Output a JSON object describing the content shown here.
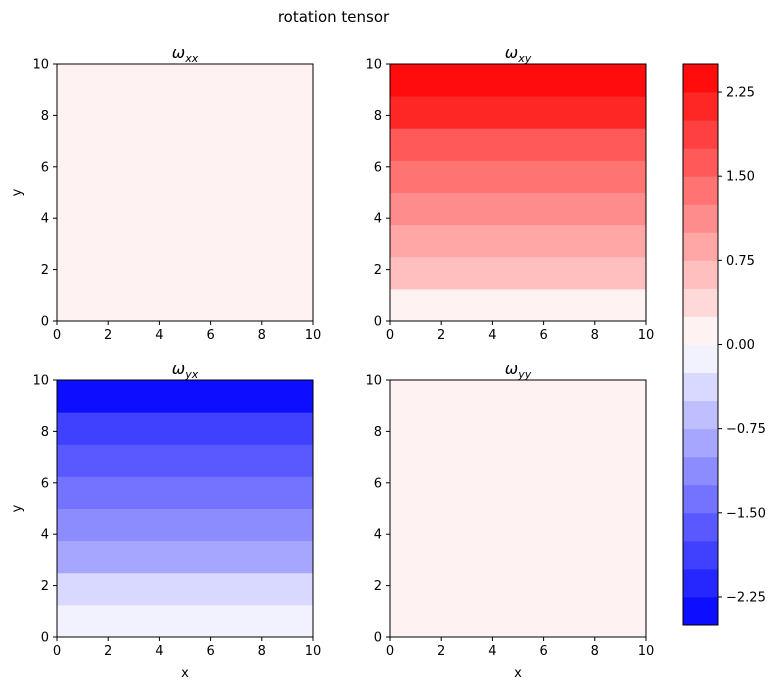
{
  "figure": {
    "suptitle": "rotation tensor"
  },
  "chart_data": [
    {
      "type": "heatmap",
      "title": "ω_xx",
      "title_main": "ω",
      "title_sub": "xx",
      "xlabel": "",
      "ylabel": "y",
      "xlim": [
        0,
        10
      ],
      "ylim": [
        0,
        10
      ],
      "xticks": [
        "0",
        "2",
        "4",
        "6",
        "8",
        "10"
      ],
      "yticks": [
        "0",
        "2",
        "4",
        "6",
        "8",
        "10"
      ],
      "bands": [
        {
          "y0": 0,
          "y1": 10,
          "value": 0.0
        }
      ]
    },
    {
      "type": "heatmap",
      "title": "ω_xy",
      "title_main": "ω",
      "title_sub": "xy",
      "xlabel": "",
      "ylabel": "",
      "xlim": [
        0,
        10
      ],
      "ylim": [
        0,
        10
      ],
      "xticks": [
        "0",
        "2",
        "4",
        "6",
        "8",
        "10"
      ],
      "yticks": [
        "0",
        "2",
        "4",
        "6",
        "8",
        "10"
      ],
      "bands": [
        {
          "y0": 0,
          "y1": 1.25,
          "value": 0.19
        },
        {
          "y0": 1.25,
          "y1": 2.5,
          "value": 0.5
        },
        {
          "y0": 2.5,
          "y1": 3.75,
          "value": 0.8
        },
        {
          "y0": 3.75,
          "y1": 5.0,
          "value": 1.1
        },
        {
          "y0": 5.0,
          "y1": 6.25,
          "value": 1.4
        },
        {
          "y0": 6.25,
          "y1": 7.5,
          "value": 1.7
        },
        {
          "y0": 7.5,
          "y1": 8.75,
          "value": 2.0
        },
        {
          "y0": 8.75,
          "y1": 10,
          "value": 2.3
        }
      ]
    },
    {
      "type": "heatmap",
      "title": "ω_yx",
      "title_main": "ω",
      "title_sub": "yx",
      "xlabel": "x",
      "ylabel": "y",
      "xlim": [
        0,
        10
      ],
      "ylim": [
        0,
        10
      ],
      "xticks": [
        "0",
        "2",
        "4",
        "6",
        "8",
        "10"
      ],
      "yticks": [
        "0",
        "2",
        "4",
        "6",
        "8",
        "10"
      ],
      "bands": [
        {
          "y0": 0,
          "y1": 1.25,
          "value": -0.19
        },
        {
          "y0": 1.25,
          "y1": 2.5,
          "value": -0.5
        },
        {
          "y0": 2.5,
          "y1": 3.75,
          "value": -0.8
        },
        {
          "y0": 3.75,
          "y1": 5.0,
          "value": -1.1
        },
        {
          "y0": 5.0,
          "y1": 6.25,
          "value": -1.4
        },
        {
          "y0": 6.25,
          "y1": 7.5,
          "value": -1.7
        },
        {
          "y0": 7.5,
          "y1": 8.75,
          "value": -2.0
        },
        {
          "y0": 8.75,
          "y1": 10,
          "value": -2.3
        }
      ]
    },
    {
      "type": "heatmap",
      "title": "ω_yy",
      "title_main": "ω",
      "title_sub": "yy",
      "xlabel": "x",
      "ylabel": "",
      "xlim": [
        0,
        10
      ],
      "ylim": [
        0,
        10
      ],
      "xticks": [
        "0",
        "2",
        "4",
        "6",
        "8",
        "10"
      ],
      "yticks": [
        "0",
        "2",
        "4",
        "6",
        "8",
        "10"
      ],
      "bands": [
        {
          "y0": 0,
          "y1": 10,
          "value": 0.0
        }
      ]
    }
  ],
  "colorbar": {
    "colormap": "bwr",
    "range": [
      -2.5,
      2.5
    ],
    "levels": 20,
    "ticks": [
      -2.25,
      -1.5,
      -0.75,
      0.0,
      0.75,
      1.5,
      2.25
    ],
    "tick_labels": [
      "−2.25",
      "−1.50",
      "−0.75",
      "0.00",
      "0.75",
      "1.50",
      "2.25"
    ]
  }
}
